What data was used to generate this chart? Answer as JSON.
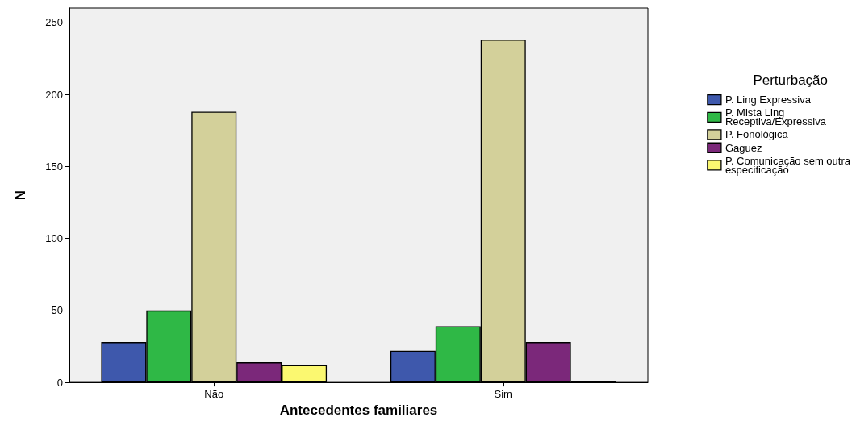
{
  "chart_data": {
    "type": "bar",
    "xlabel": "Antecedentes familiares",
    "ylabel": "N",
    "legend_title": "Perturbação",
    "legend": "right",
    "grid": false,
    "categories": [
      "Não",
      "Sim"
    ],
    "ylim": [
      0,
      260
    ],
    "yticks": [
      0,
      50,
      100,
      150,
      200,
      250
    ],
    "series": [
      {
        "name": "P. Ling Expressiva",
        "color": "#3e58ac",
        "values": [
          28,
          22
        ]
      },
      {
        "name": "P. Mista Ling\nReceptiva/Expressiva",
        "color": "#2fb846",
        "values": [
          50,
          39
        ]
      },
      {
        "name": "P. Fonológica",
        "color": "#d3d09a",
        "values": [
          188,
          238
        ]
      },
      {
        "name": "Gaguez",
        "color": "#7b287a",
        "values": [
          14,
          28
        ]
      },
      {
        "name": "P. Comunicação sem outra\nespecificação",
        "color": "#fbf870",
        "values": [
          12,
          1
        ]
      }
    ]
  }
}
